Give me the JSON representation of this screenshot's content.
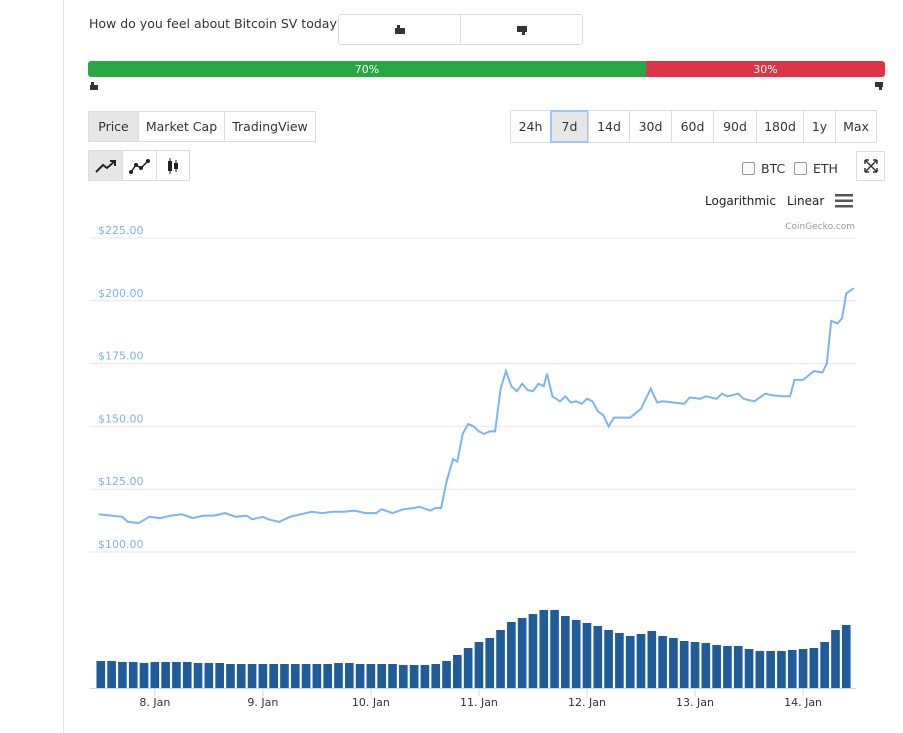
{
  "sentiment": {
    "question": "How do you feel about Bitcoin SV today?",
    "bullish": {
      "value": 70,
      "label": "70%"
    },
    "bearish": {
      "value": 30,
      "label": "30%"
    }
  },
  "tabs": [
    "Price",
    "Market Cap",
    "TradingView"
  ],
  "ranges": [
    "24h",
    "7d",
    "14d",
    "30d",
    "60d",
    "90d",
    "180d",
    "1y",
    "Max"
  ],
  "active_range": "7d",
  "compare": [
    "BTC",
    "ETH"
  ],
  "scale_options": [
    "Logarithmic",
    "Linear"
  ],
  "credit": "CoinGecko.com",
  "chart_data": {
    "type": "line",
    "color": "#7cb5ec",
    "x": [
      7.48,
      7.6,
      7.7,
      7.75,
      7.85,
      7.95,
      8.05,
      8.15,
      8.25,
      8.35,
      8.45,
      8.55,
      8.65,
      8.75,
      8.85,
      8.9,
      9.0,
      9.05,
      9.15,
      9.25,
      9.35,
      9.45,
      9.55,
      9.65,
      9.75,
      9.85,
      9.95,
      10.05,
      10.1,
      10.2,
      10.3,
      10.4,
      10.45,
      10.55,
      10.6,
      10.65,
      10.7,
      10.76,
      10.8,
      10.85,
      10.9,
      10.95,
      11.0,
      11.05,
      11.1,
      11.15,
      11.2,
      11.25,
      11.3,
      11.35,
      11.4,
      11.45,
      11.5,
      11.55,
      11.6,
      11.63,
      11.68,
      11.75,
      11.8,
      11.85,
      11.9,
      11.95,
      12.0,
      12.05,
      12.1,
      12.15,
      12.2,
      12.25,
      12.4,
      12.5,
      12.59,
      12.65,
      12.7,
      12.8,
      12.9,
      12.95,
      13.05,
      13.1,
      13.2,
      13.25,
      13.3,
      13.4,
      13.45,
      13.55,
      13.65,
      13.7,
      13.8,
      13.88,
      13.92,
      14.0,
      14.1,
      14.18,
      14.22,
      14.26,
      14.32,
      14.36,
      14.4,
      14.47
    ],
    "values": [
      115,
      114.5,
      114,
      112,
      111.5,
      114,
      113.5,
      114.5,
      115,
      113.5,
      114.5,
      114.5,
      115.5,
      114,
      114.5,
      113,
      114,
      113,
      112,
      114,
      115,
      116,
      115.5,
      116,
      116,
      116.5,
      115.5,
      115.5,
      117,
      115.5,
      117,
      117.5,
      118,
      116.5,
      117.5,
      117.5,
      128,
      137,
      136,
      147,
      151,
      150,
      148,
      147,
      148,
      148,
      165,
      172,
      166,
      164,
      167,
      164.5,
      164,
      167,
      166,
      171,
      162,
      160,
      162,
      159.5,
      160,
      159,
      161,
      160,
      156,
      154.5,
      150,
      153.5,
      153.5,
      157,
      165,
      159.5,
      160,
      159.5,
      159,
      161.5,
      161,
      162,
      161,
      163,
      162,
      163,
      161,
      160,
      163,
      162.5,
      162,
      162,
      168.5,
      168.5,
      172,
      171.5,
      175,
      192,
      191,
      193,
      203,
      205
    ],
    "xlim": [
      7.4,
      14.49
    ],
    "xticks": [
      {
        "value": 8,
        "label": "8. Jan"
      },
      {
        "value": 9,
        "label": "9. Jan"
      },
      {
        "value": 10,
        "label": "10. Jan"
      },
      {
        "value": 11,
        "label": "11. Jan"
      },
      {
        "value": 12,
        "label": "12. Jan"
      },
      {
        "value": 13,
        "label": "13. Jan"
      },
      {
        "value": 14,
        "label": "14. Jan"
      }
    ],
    "ylim": [
      100,
      225
    ],
    "yticks": [
      {
        "value": 100,
        "label": "$100.00"
      },
      {
        "value": 125,
        "label": "$125.00"
      },
      {
        "value": 150,
        "label": "$150.00"
      },
      {
        "value": 175,
        "label": "$175.00"
      },
      {
        "value": 200,
        "label": "$200.00"
      },
      {
        "value": 225,
        "label": "$225.00"
      }
    ],
    "grid": true,
    "volume": {
      "color": "#1f5c99",
      "x": [
        7.5,
        7.6,
        7.7,
        7.8,
        7.9,
        8.0,
        8.1,
        8.2,
        8.3,
        8.4,
        8.5,
        8.6,
        8.7,
        8.8,
        8.9,
        9.0,
        9.1,
        9.2,
        9.3,
        9.4,
        9.5,
        9.6,
        9.7,
        9.8,
        9.9,
        10.0,
        10.1,
        10.2,
        10.3,
        10.4,
        10.5,
        10.6,
        10.7,
        10.8,
        10.9,
        11.0,
        11.1,
        11.2,
        11.3,
        11.4,
        11.5,
        11.6,
        11.7,
        11.8,
        11.9,
        12.0,
        12.1,
        12.2,
        12.3,
        12.4,
        12.5,
        12.6,
        12.7,
        12.8,
        12.9,
        13.0,
        13.1,
        13.2,
        13.3,
        13.4,
        13.5,
        13.6,
        13.7,
        13.8,
        13.9,
        14.0,
        14.1,
        14.2,
        14.3,
        14.4
      ],
      "values": [
        27,
        27,
        26,
        26,
        25,
        26,
        26,
        26,
        26,
        25,
        25,
        25,
        24,
        24,
        24,
        24,
        24,
        24,
        24,
        24,
        24,
        24,
        25,
        25,
        24,
        24,
        24,
        24,
        23,
        23,
        23,
        24,
        27,
        33,
        40,
        46,
        50,
        58,
        66,
        70,
        74,
        78,
        78,
        72,
        68,
        65,
        62,
        58,
        55,
        52,
        54,
        57,
        52,
        50,
        47,
        46,
        45,
        43,
        42,
        42,
        39,
        37,
        37,
        37,
        38,
        39,
        40,
        46,
        58,
        63
      ]
    }
  }
}
